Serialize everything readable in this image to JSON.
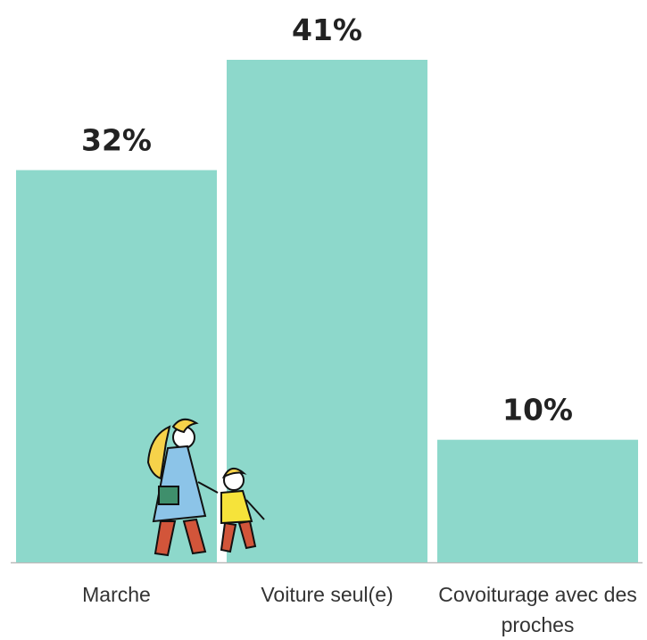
{
  "chart_data": {
    "type": "bar",
    "categories": [
      "Marche",
      "Voiture seul(e)",
      "Covoiturage avec des proches"
    ],
    "values": [
      32,
      41,
      10
    ],
    "value_labels": [
      "32%",
      "41%",
      "10%"
    ],
    "color": "#8dd8cb"
  }
}
